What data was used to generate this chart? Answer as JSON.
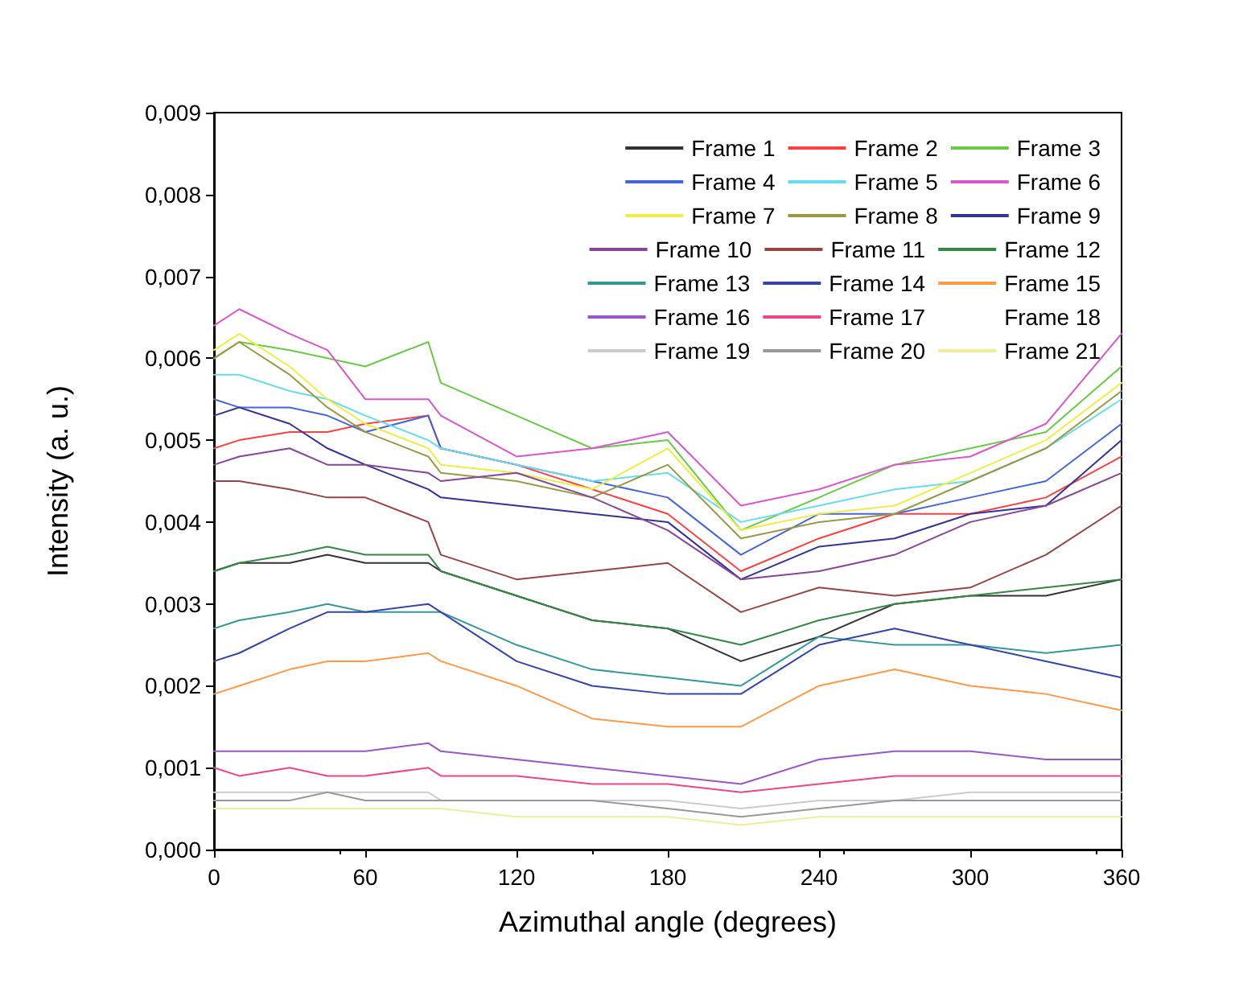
{
  "chart_data": {
    "type": "line",
    "xlabel": "Azimuthal angle (degrees)",
    "ylabel": "Intensity (a. u.)",
    "x": [
      0,
      10,
      30,
      45,
      60,
      85,
      90,
      120,
      150,
      180,
      209,
      240,
      270,
      300,
      330,
      360
    ],
    "xlim": [
      0,
      360
    ],
    "xticks": [
      0,
      60,
      120,
      180,
      240,
      300,
      360
    ],
    "ylim": [
      0,
      0.009
    ],
    "yticks": [
      {
        "value": 0,
        "label": "0,000"
      },
      {
        "value": 0.001,
        "label": "0,001"
      },
      {
        "value": 0.002,
        "label": "0,002"
      },
      {
        "value": 0.003,
        "label": "0,003"
      },
      {
        "value": 0.004,
        "label": "0,004"
      },
      {
        "value": 0.005,
        "label": "0,005"
      },
      {
        "value": 0.006,
        "label": "0,006"
      },
      {
        "value": 0.007,
        "label": "0,007"
      },
      {
        "value": 0.008,
        "label": "0,008"
      },
      {
        "value": 0.009,
        "label": "0,009"
      }
    ],
    "grid": false,
    "legend": "top right",
    "marker": "none",
    "line_style": "solid",
    "series": [
      {
        "name": "Frame 1",
        "color": "#333333",
        "values": [
          0.0034,
          0.0035,
          0.0035,
          0.0036,
          0.0035,
          0.0035,
          0.0034,
          0.0031,
          0.0028,
          0.0027,
          0.0023,
          0.0026,
          0.003,
          0.0031,
          0.0031,
          0.0033
        ]
      },
      {
        "name": "Frame 2",
        "color": "#ff4040",
        "values": [
          0.0049,
          0.005,
          0.0051,
          0.0051,
          0.0052,
          0.0053,
          0.0049,
          0.0047,
          0.0044,
          0.0041,
          0.0034,
          0.0038,
          0.0041,
          0.0041,
          0.0043,
          0.0048
        ]
      },
      {
        "name": "Frame 3",
        "color": "#66cc44",
        "values": [
          0.006,
          0.0062,
          0.0061,
          0.006,
          0.0059,
          0.0062,
          0.0057,
          0.0053,
          0.0049,
          0.005,
          0.0039,
          0.0043,
          0.0047,
          0.0049,
          0.0051,
          0.0059
        ]
      },
      {
        "name": "Frame 4",
        "color": "#4466dd",
        "values": [
          0.0055,
          0.0054,
          0.0054,
          0.0053,
          0.0051,
          0.0053,
          0.0049,
          0.0047,
          0.0045,
          0.0043,
          0.0036,
          0.0041,
          0.0041,
          0.0043,
          0.0045,
          0.0052
        ]
      },
      {
        "name": "Frame 5",
        "color": "#66ddee",
        "values": [
          0.0058,
          0.0058,
          0.0056,
          0.0055,
          0.0053,
          0.005,
          0.0049,
          0.0047,
          0.0045,
          0.0046,
          0.004,
          0.0042,
          0.0044,
          0.0045,
          0.0049,
          0.0055
        ]
      },
      {
        "name": "Frame 6",
        "color": "#dd55cc",
        "values": [
          0.0064,
          0.0066,
          0.0063,
          0.0061,
          0.0055,
          0.0055,
          0.0053,
          0.0048,
          0.0049,
          0.0051,
          0.0042,
          0.0044,
          0.0047,
          0.0048,
          0.0052,
          0.0063
        ]
      },
      {
        "name": "Frame 7",
        "color": "#eeee44",
        "values": [
          0.0061,
          0.0063,
          0.0059,
          0.0055,
          0.0052,
          0.0049,
          0.0047,
          0.0046,
          0.0044,
          0.0049,
          0.0039,
          0.0041,
          0.0042,
          0.0046,
          0.005,
          0.0057
        ]
      },
      {
        "name": "Frame 8",
        "color": "#999944",
        "values": [
          0.006,
          0.0062,
          0.0058,
          0.0054,
          0.0051,
          0.0048,
          0.0046,
          0.0045,
          0.0043,
          0.0047,
          0.0038,
          0.004,
          0.0041,
          0.0045,
          0.0049,
          0.0056
        ]
      },
      {
        "name": "Frame 9",
        "color": "#333399",
        "values": [
          0.0053,
          0.0054,
          0.0052,
          0.0049,
          0.0047,
          0.0044,
          0.0043,
          0.0042,
          0.0041,
          0.004,
          0.0033,
          0.0037,
          0.0038,
          0.0041,
          0.0042,
          0.005
        ]
      },
      {
        "name": "Frame 10",
        "color": "#884499",
        "values": [
          0.0047,
          0.0048,
          0.0049,
          0.0047,
          0.0047,
          0.0046,
          0.0045,
          0.0046,
          0.0043,
          0.0039,
          0.0033,
          0.0034,
          0.0036,
          0.004,
          0.0042,
          0.0046
        ]
      },
      {
        "name": "Frame 11",
        "color": "#994444",
        "values": [
          0.0045,
          0.0045,
          0.0044,
          0.0043,
          0.0043,
          0.004,
          0.0036,
          0.0033,
          0.0034,
          0.0035,
          0.0029,
          0.0032,
          0.0031,
          0.0032,
          0.0036,
          0.0042
        ]
      },
      {
        "name": "Frame 12",
        "color": "#338844",
        "values": [
          0.0034,
          0.0035,
          0.0036,
          0.0037,
          0.0036,
          0.0036,
          0.0034,
          0.0031,
          0.0028,
          0.0027,
          0.0025,
          0.0028,
          0.003,
          0.0031,
          0.0032,
          0.0033
        ]
      },
      {
        "name": "Frame 13",
        "color": "#339999",
        "values": [
          0.0027,
          0.0028,
          0.0029,
          0.003,
          0.0029,
          0.0029,
          0.0029,
          0.0025,
          0.0022,
          0.0021,
          0.002,
          0.0026,
          0.0025,
          0.0025,
          0.0024,
          0.0025
        ]
      },
      {
        "name": "Frame 14",
        "color": "#3344aa",
        "values": [
          0.0023,
          0.0024,
          0.0027,
          0.0029,
          0.0029,
          0.003,
          0.0029,
          0.0023,
          0.002,
          0.0019,
          0.0019,
          0.0025,
          0.0027,
          0.0025,
          0.0023,
          0.0021
        ]
      },
      {
        "name": "Frame 15",
        "color": "#ff9944",
        "values": [
          0.0019,
          0.002,
          0.0022,
          0.0023,
          0.0023,
          0.0024,
          0.0023,
          0.002,
          0.0016,
          0.0015,
          0.0015,
          0.002,
          0.0022,
          0.002,
          0.0019,
          0.0017
        ]
      },
      {
        "name": "Frame 16",
        "color": "#9955cc",
        "values": [
          0.0012,
          0.0012,
          0.0012,
          0.0012,
          0.0012,
          0.0013,
          0.0012,
          0.0011,
          0.001,
          0.0009,
          0.0008,
          0.0011,
          0.0012,
          0.0012,
          0.0011,
          0.0011
        ]
      },
      {
        "name": "Frame 17",
        "color": "#ee4488",
        "values": [
          0.001,
          0.0009,
          0.001,
          0.0009,
          0.0009,
          0.001,
          0.0009,
          0.0009,
          0.0008,
          0.0008,
          0.0007,
          0.0008,
          0.0009,
          0.0009,
          0.0009,
          0.0009
        ]
      },
      {
        "name": "Frame 18",
        "values": [
          null,
          null,
          null,
          null,
          null,
          null,
          null,
          null,
          null,
          null,
          null,
          null,
          null,
          null,
          null,
          null
        ]
      },
      {
        "name": "Frame 19",
        "color": "#cccccc",
        "values": [
          0.0007,
          0.0007,
          0.0007,
          0.0007,
          0.0007,
          0.0007,
          0.0006,
          0.0006,
          0.0006,
          0.0006,
          0.0005,
          0.0006,
          0.0006,
          0.0007,
          0.0007,
          0.0007
        ]
      },
      {
        "name": "Frame 20",
        "color": "#999999",
        "values": [
          0.0006,
          0.0006,
          0.0006,
          0.0007,
          0.0006,
          0.0006,
          0.0006,
          0.0006,
          0.0006,
          0.0005,
          0.0004,
          0.0005,
          0.0006,
          0.0006,
          0.0006,
          0.0006
        ]
      },
      {
        "name": "Frame 21",
        "color": "#eeee99",
        "values": [
          0.0005,
          0.0005,
          0.0005,
          0.0005,
          0.0005,
          0.0005,
          0.0005,
          0.0004,
          0.0004,
          0.0004,
          0.0003,
          0.0004,
          0.0004,
          0.0004,
          0.0004,
          0.0004
        ]
      }
    ]
  }
}
